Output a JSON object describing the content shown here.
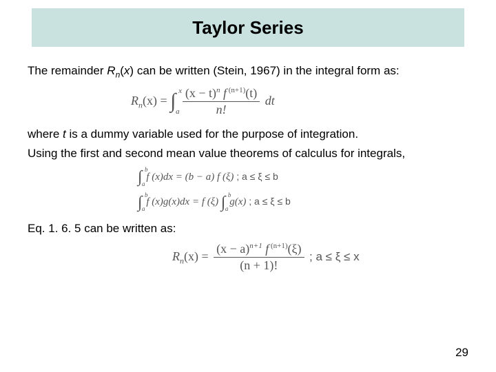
{
  "title": "Taylor Series",
  "para1_pre": "The remainder ",
  "para1_sym_R": "R",
  "para1_sym_n": "n",
  "para1_sym_x": "(x)",
  "para1_post": "can be written (Stein, 1967) in the integral form as:",
  "eq1": {
    "lhs": "R",
    "lhs_sub": "n",
    "lhs_arg": "(x) =",
    "int_lower": "a",
    "int_upper": "x",
    "num_a": "(x − t)",
    "num_exp1": "n",
    "num_b": " f",
    "num_exp2": "(n+1)",
    "num_c": "(t)",
    "den": "n!",
    "tail": "dt"
  },
  "para2a": "where ",
  "para2_t": "t",
  "para2b": " is a dummy variable used for the purpose of integration.",
  "para3": "Using the first and second mean value theorems of calculus for integrals,",
  "eq2a": {
    "int_lower": "a",
    "int_upper": "b",
    "body": "f (x)dx = (b − a) f (ξ)",
    "cond": " ; a ≤ ξ ≤ b"
  },
  "eq2b": {
    "int_lower": "a",
    "int_upper": "b",
    "body_l": "f (x)g(x)dx = f (ξ)",
    "int2_lower": "a",
    "int2_upper": "b",
    "body_r": "g(x)",
    "cond": " ; a ≤ ξ ≤ b"
  },
  "para4": "Eq. 1. 6. 5 can be written as:",
  "eq3": {
    "lhs": "R",
    "lhs_sub": "n",
    "lhs_arg": "(x) =",
    "num_a": "(x − a)",
    "num_exp1": "n+1",
    "num_b": " f",
    "num_exp2": "(n+1)",
    "num_c": "(ξ)",
    "den": "(n + 1)!",
    "cond": " ;  a ≤ ξ ≤ x"
  },
  "page": "29",
  "colors": {
    "title_band": "#c9e2e0",
    "text": "#000000",
    "eq_text": "#555555",
    "bg": "#ffffff"
  }
}
